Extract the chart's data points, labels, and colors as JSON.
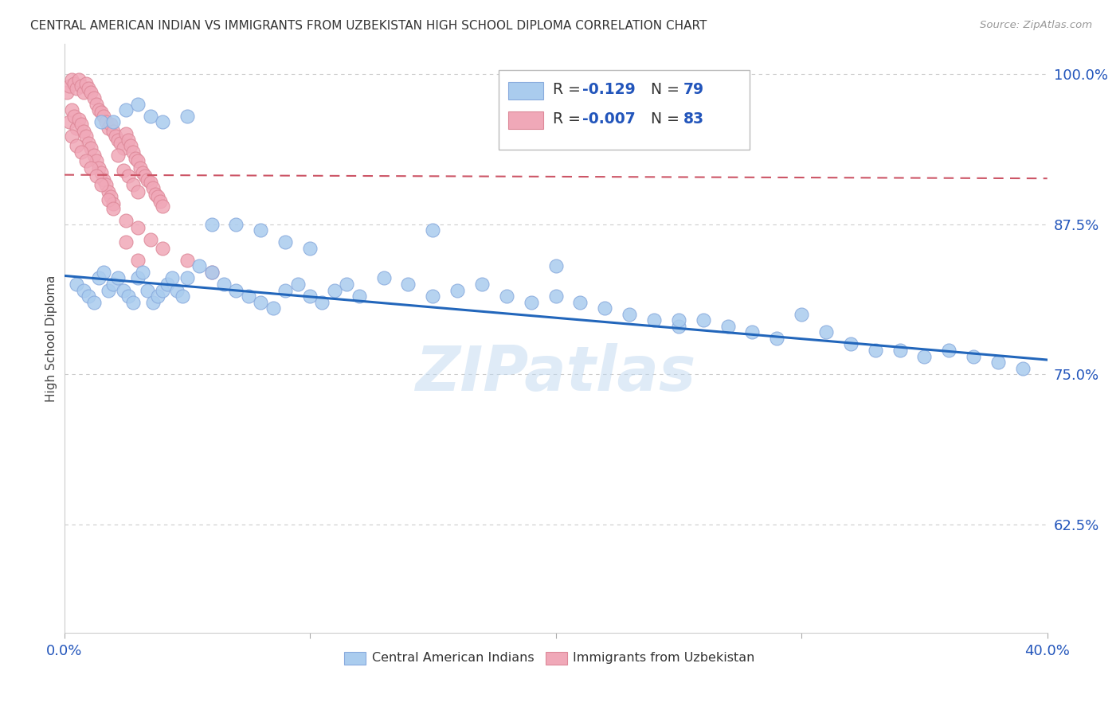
{
  "title": "CENTRAL AMERICAN INDIAN VS IMMIGRANTS FROM UZBEKISTAN HIGH SCHOOL DIPLOMA CORRELATION CHART",
  "source": "Source: ZipAtlas.com",
  "ylabel": "High School Diploma",
  "ytick_labels": [
    "100.0%",
    "87.5%",
    "75.0%",
    "62.5%"
  ],
  "ytick_values": [
    1.0,
    0.875,
    0.75,
    0.625
  ],
  "xlim": [
    0.0,
    0.4
  ],
  "ylim": [
    0.535,
    1.025
  ],
  "blue_color": "#aaccee",
  "pink_color": "#f0a8b8",
  "blue_edge": "#88aadd",
  "pink_edge": "#dd8898",
  "line_blue": "#2266bb",
  "line_pink": "#cc5566",
  "watermark": "ZIPatlas",
  "blue_line_x": [
    0.0,
    0.4
  ],
  "blue_line_y": [
    0.832,
    0.762
  ],
  "pink_line_x": [
    0.0,
    0.4
  ],
  "pink_line_y": [
    0.916,
    0.913
  ],
  "blue_scatter_x": [
    0.005,
    0.008,
    0.01,
    0.012,
    0.014,
    0.016,
    0.018,
    0.02,
    0.022,
    0.024,
    0.026,
    0.028,
    0.03,
    0.032,
    0.034,
    0.036,
    0.038,
    0.04,
    0.042,
    0.044,
    0.046,
    0.048,
    0.05,
    0.055,
    0.06,
    0.065,
    0.07,
    0.075,
    0.08,
    0.085,
    0.09,
    0.095,
    0.1,
    0.105,
    0.11,
    0.115,
    0.12,
    0.13,
    0.14,
    0.15,
    0.16,
    0.17,
    0.18,
    0.19,
    0.2,
    0.21,
    0.22,
    0.23,
    0.24,
    0.25,
    0.26,
    0.27,
    0.28,
    0.29,
    0.3,
    0.31,
    0.32,
    0.33,
    0.34,
    0.35,
    0.36,
    0.37,
    0.38,
    0.39,
    0.015,
    0.02,
    0.025,
    0.03,
    0.035,
    0.04,
    0.05,
    0.06,
    0.07,
    0.08,
    0.09,
    0.1,
    0.15,
    0.2,
    0.25
  ],
  "blue_scatter_y": [
    0.825,
    0.82,
    0.815,
    0.81,
    0.83,
    0.835,
    0.82,
    0.825,
    0.83,
    0.82,
    0.815,
    0.81,
    0.83,
    0.835,
    0.82,
    0.81,
    0.815,
    0.82,
    0.825,
    0.83,
    0.82,
    0.815,
    0.83,
    0.84,
    0.835,
    0.825,
    0.82,
    0.815,
    0.81,
    0.805,
    0.82,
    0.825,
    0.815,
    0.81,
    0.82,
    0.825,
    0.815,
    0.83,
    0.825,
    0.815,
    0.82,
    0.825,
    0.815,
    0.81,
    0.815,
    0.81,
    0.805,
    0.8,
    0.795,
    0.79,
    0.795,
    0.79,
    0.785,
    0.78,
    0.8,
    0.785,
    0.775,
    0.77,
    0.77,
    0.765,
    0.77,
    0.765,
    0.76,
    0.755,
    0.96,
    0.96,
    0.97,
    0.975,
    0.965,
    0.96,
    0.965,
    0.875,
    0.875,
    0.87,
    0.86,
    0.855,
    0.87,
    0.84,
    0.795
  ],
  "pink_scatter_x": [
    0.001,
    0.002,
    0.003,
    0.004,
    0.005,
    0.006,
    0.007,
    0.008,
    0.009,
    0.01,
    0.011,
    0.012,
    0.013,
    0.014,
    0.015,
    0.016,
    0.017,
    0.018,
    0.019,
    0.02,
    0.021,
    0.022,
    0.023,
    0.024,
    0.025,
    0.026,
    0.027,
    0.028,
    0.029,
    0.03,
    0.031,
    0.032,
    0.033,
    0.034,
    0.035,
    0.036,
    0.037,
    0.038,
    0.039,
    0.04,
    0.002,
    0.003,
    0.004,
    0.005,
    0.006,
    0.007,
    0.008,
    0.009,
    0.01,
    0.011,
    0.012,
    0.013,
    0.014,
    0.015,
    0.016,
    0.017,
    0.018,
    0.019,
    0.02,
    0.022,
    0.024,
    0.026,
    0.028,
    0.03,
    0.003,
    0.005,
    0.007,
    0.009,
    0.011,
    0.013,
    0.015,
    0.018,
    0.02,
    0.025,
    0.03,
    0.035,
    0.04,
    0.05,
    0.06,
    0.025,
    0.03
  ],
  "pink_scatter_y": [
    0.985,
    0.99,
    0.995,
    0.992,
    0.988,
    0.995,
    0.99,
    0.985,
    0.992,
    0.988,
    0.985,
    0.98,
    0.975,
    0.97,
    0.968,
    0.965,
    0.96,
    0.955,
    0.958,
    0.952,
    0.948,
    0.945,
    0.942,
    0.938,
    0.95,
    0.945,
    0.94,
    0.935,
    0.93,
    0.928,
    0.922,
    0.918,
    0.915,
    0.912,
    0.91,
    0.905,
    0.9,
    0.898,
    0.894,
    0.89,
    0.96,
    0.97,
    0.965,
    0.955,
    0.962,
    0.958,
    0.952,
    0.948,
    0.942,
    0.938,
    0.932,
    0.928,
    0.922,
    0.918,
    0.912,
    0.908,
    0.902,
    0.898,
    0.892,
    0.932,
    0.92,
    0.915,
    0.908,
    0.902,
    0.948,
    0.94,
    0.935,
    0.928,
    0.922,
    0.915,
    0.908,
    0.895,
    0.888,
    0.878,
    0.872,
    0.862,
    0.855,
    0.845,
    0.835,
    0.86,
    0.845
  ]
}
